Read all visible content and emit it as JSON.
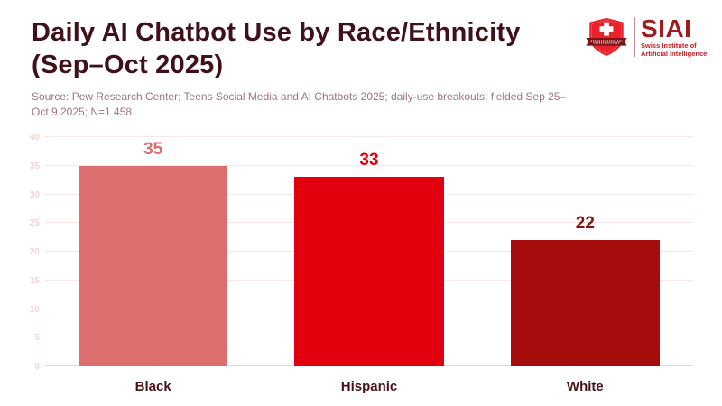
{
  "header": {
    "title_line1": "Daily AI Chatbot Use by Race/Ethnicity",
    "title_line2": "(Sep–Oct 2025)",
    "source_line1": "Source: Pew Research Center; Teens Social Media and AI Chatbots 2025; daily-use breakouts; fielded Sep 25–",
    "source_line2": "Oct 9 2025; N=1 458"
  },
  "logo": {
    "wordmark": "SIAI",
    "subtitle_line1": "Swiss Institute of",
    "subtitle_line2": "Artificial Intelligence",
    "icons": {
      "shield": "swiss-shield-cross-icon"
    },
    "colors": {
      "shield_red": "#e8212b",
      "ribbon_dark_red": "#7e1113",
      "wordmark_red": "#9e1b1e",
      "subtitle_red": "#bb2228"
    }
  },
  "chart_data": {
    "type": "bar",
    "title": "Daily AI Chatbot Use by Race/Ethnicity (Sep–Oct 2025)",
    "categories": [
      "Black",
      "Hispanic",
      "White"
    ],
    "values": [
      35,
      33,
      22
    ],
    "bar_colors": [
      "#dd6e6e",
      "#e2000f",
      "#a60c0c"
    ],
    "value_label_colors": [
      "#dd6e6e",
      "#e2000f",
      "#8b1013"
    ],
    "xlabel": "",
    "ylabel": "",
    "ylim": [
      0,
      40
    ],
    "ytick_step": 5,
    "yticks": [
      0,
      5,
      10,
      15,
      20,
      25,
      30,
      35,
      40
    ],
    "grid": true,
    "legend": "none",
    "colors": {
      "title_text": "#401119",
      "source_text": "#9a777b",
      "category_text": "#481419",
      "ytick_text": "#f4d3d3",
      "gridline": "#f9e7e7",
      "baseline": "#e2d8d8",
      "background": "#ffffff"
    }
  }
}
